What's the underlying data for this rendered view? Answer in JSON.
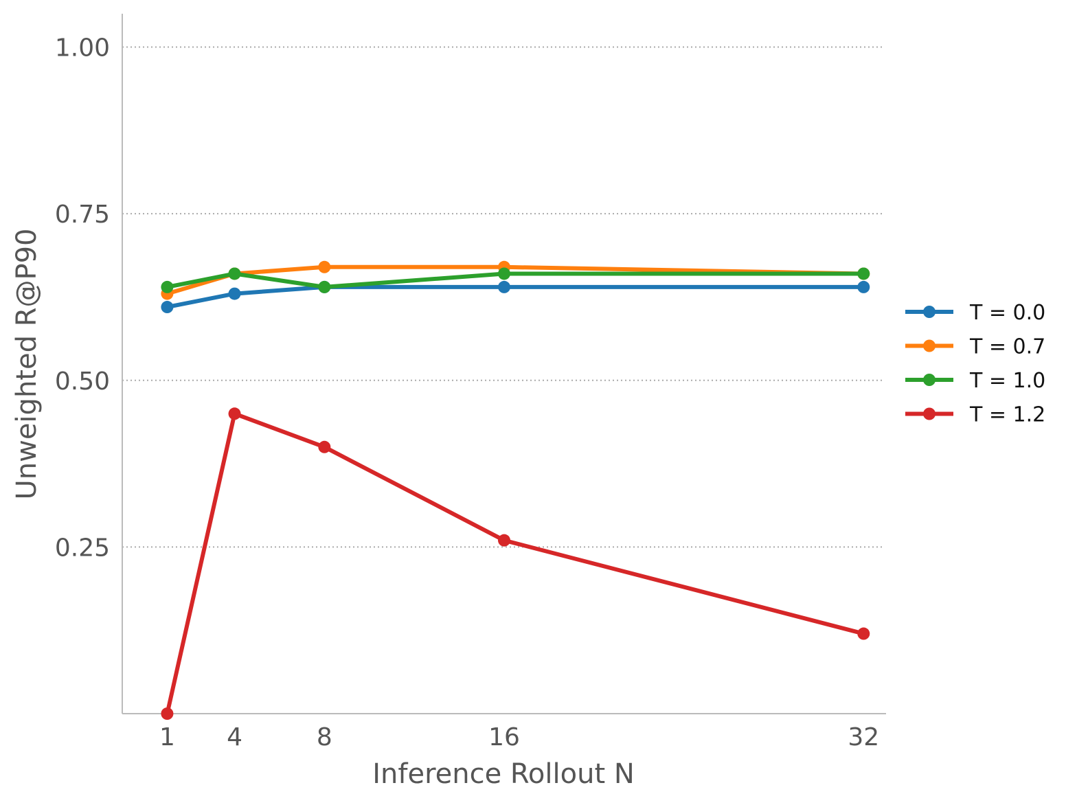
{
  "chart_data": {
    "type": "line",
    "title": "",
    "xlabel": "Inference Rollout N",
    "ylabel": "Unweighted R@P90",
    "x": [
      1,
      4,
      8,
      16,
      32
    ],
    "x_tick_labels": [
      "1",
      "4",
      "8",
      "16",
      "32"
    ],
    "xlim": [
      -1,
      33
    ],
    "ylim": [
      0.0,
      1.05
    ],
    "y_ticks": [
      0.25,
      0.5,
      0.75,
      1.0
    ],
    "y_tick_labels": [
      "0.25",
      "0.50",
      "0.75",
      "1.00"
    ],
    "grid": "horizontal dotted",
    "legend_position": "right",
    "series": [
      {
        "name": "T = 0.0",
        "color": "#1f77b4",
        "values": [
          0.61,
          0.63,
          0.64,
          0.64,
          0.64
        ]
      },
      {
        "name": "T = 0.7",
        "color": "#ff7f0e",
        "values": [
          0.63,
          0.66,
          0.67,
          0.67,
          0.66
        ]
      },
      {
        "name": "T = 1.0",
        "color": "#2ca02c",
        "values": [
          0.64,
          0.66,
          0.64,
          0.66,
          0.66
        ]
      },
      {
        "name": "T = 1.2",
        "color": "#d62728",
        "values": [
          0.0,
          0.45,
          0.4,
          0.26,
          0.12
        ]
      }
    ]
  }
}
